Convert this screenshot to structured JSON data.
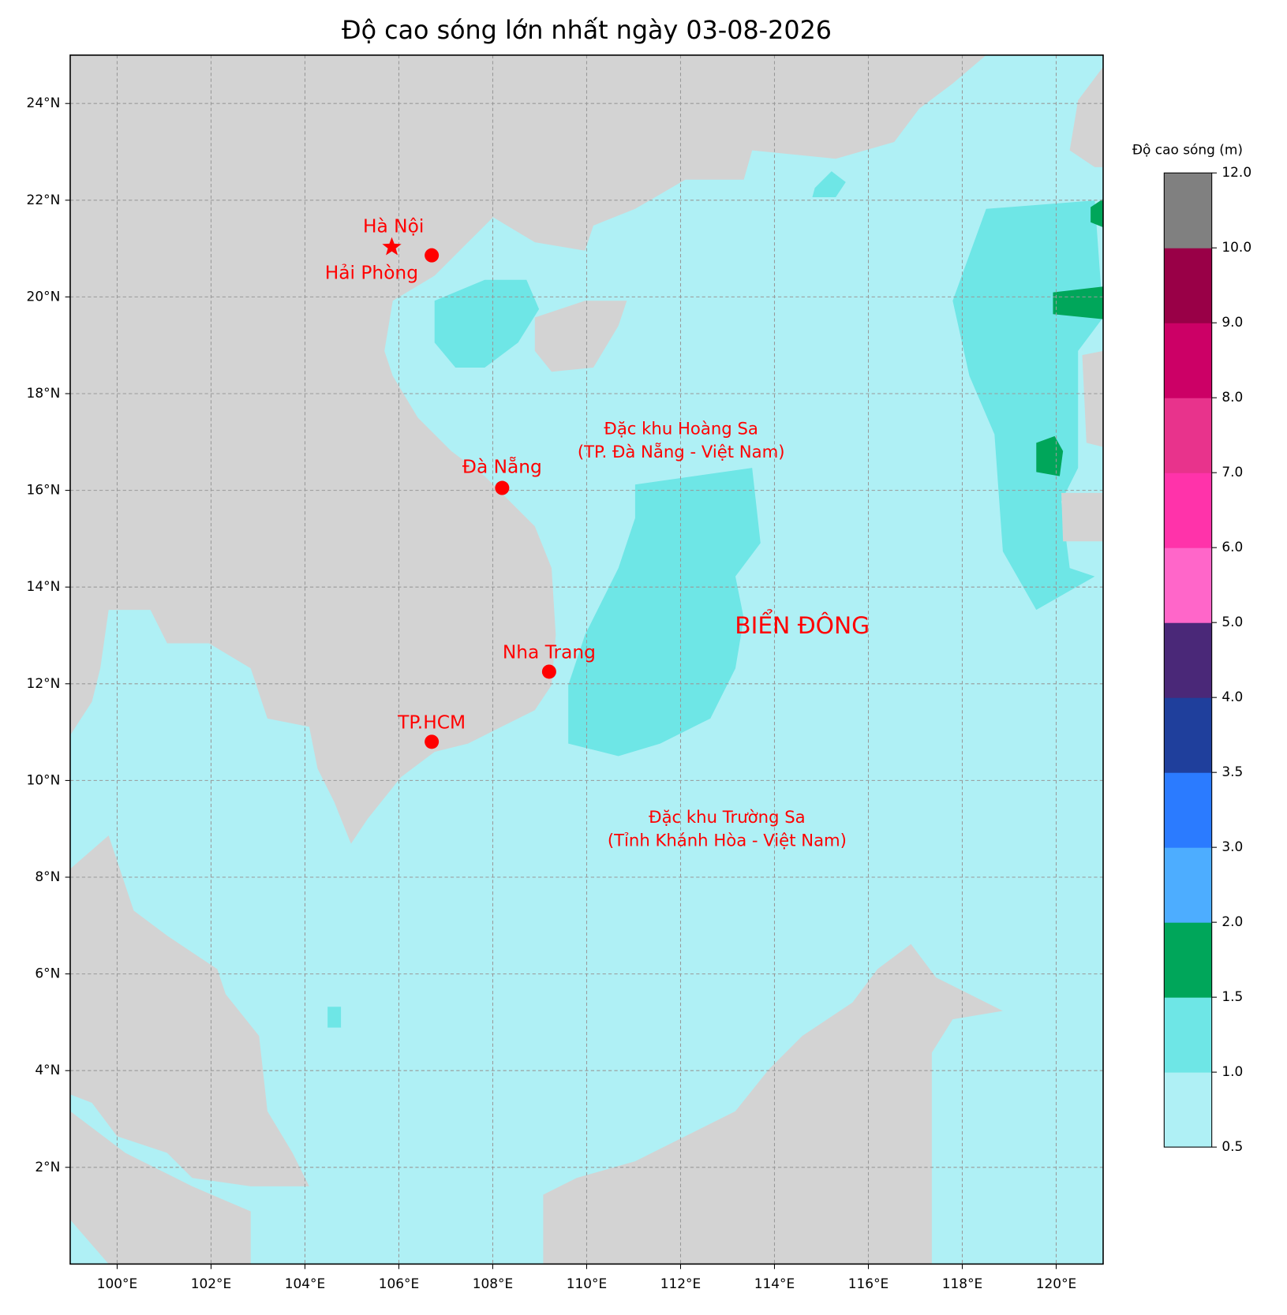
{
  "title": "Độ cao sóng lớn nhất ngày 03-08-2026",
  "map": {
    "lon_range": [
      99,
      121
    ],
    "lat_range": [
      0,
      25
    ],
    "grid": true,
    "lon_ticks": [
      {
        "value": 100,
        "label": "100°E"
      },
      {
        "value": 102,
        "label": "102°E"
      },
      {
        "value": 104,
        "label": "104°E"
      },
      {
        "value": 106,
        "label": "106°E"
      },
      {
        "value": 108,
        "label": "108°E"
      },
      {
        "value": 110,
        "label": "110°E"
      },
      {
        "value": 112,
        "label": "112°E"
      },
      {
        "value": 114,
        "label": "114°E"
      },
      {
        "value": 116,
        "label": "116°E"
      },
      {
        "value": 118,
        "label": "118°E"
      },
      {
        "value": 120,
        "label": "120°E"
      }
    ],
    "lat_ticks": [
      {
        "value": 2,
        "label": "2°N"
      },
      {
        "value": 4,
        "label": "4°N"
      },
      {
        "value": 6,
        "label": "6°N"
      },
      {
        "value": 8,
        "label": "8°N"
      },
      {
        "value": 10,
        "label": "10°N"
      },
      {
        "value": 12,
        "label": "12°N"
      },
      {
        "value": 14,
        "label": "14°N"
      },
      {
        "value": 16,
        "label": "16°N"
      },
      {
        "value": 18,
        "label": "18°N"
      },
      {
        "value": 20,
        "label": "20°N"
      },
      {
        "value": 22,
        "label": "22°N"
      },
      {
        "value": 24,
        "label": "24°N"
      }
    ]
  },
  "colorbar": {
    "label": "Độ cao sóng (m)",
    "bounds": [
      0.5,
      1,
      1.5,
      2,
      3,
      3.5,
      4,
      5,
      6,
      7,
      8,
      9,
      10,
      12
    ],
    "colors": [
      "#aff0f5",
      "#6ee6e6",
      "#00a65a",
      "#4dadff",
      "#2b7bff",
      "#1f3f9c",
      "#4a2878",
      "#ff66c9",
      "#ff33aa",
      "#e8338c",
      "#cc0066",
      "#990047",
      "#808080"
    ],
    "ticks": [
      0.5,
      {
        "value": 1,
        "label": "1.0"
      },
      1.5,
      {
        "value": 2,
        "label": "2.0"
      },
      {
        "value": 3,
        "label": "3.0"
      },
      3.5,
      {
        "value": 4,
        "label": "4.0"
      },
      {
        "value": 5,
        "label": "5.0"
      },
      {
        "value": 6,
        "label": "6.0"
      },
      {
        "value": 7,
        "label": "7.0"
      },
      {
        "value": 8,
        "label": "8.0"
      },
      {
        "value": 9,
        "label": "9.0"
      },
      {
        "value": 10,
        "label": "10.0"
      },
      {
        "value": 12,
        "label": "12.0"
      }
    ]
  },
  "cities": [
    {
      "name": "Hà Nội",
      "lon": 105.85,
      "lat": 21.03,
      "marker": "star"
    },
    {
      "name": "Hải Phòng",
      "lon": 106.7,
      "lat": 20.86,
      "marker": "dot"
    },
    {
      "name": "Đà Nẵng",
      "lon": 108.2,
      "lat": 16.05,
      "marker": "dot"
    },
    {
      "name": "Nha Trang",
      "lon": 109.2,
      "lat": 12.25,
      "marker": "dot"
    },
    {
      "name": "TP.HCM",
      "lon": 106.7,
      "lat": 10.8,
      "marker": "dot"
    }
  ],
  "annotations": [
    {
      "lines": [
        "Đặc khu Hoàng Sa",
        "(TP. Đà Nẵng - Việt Nam)"
      ]
    },
    {
      "lines": [
        "BIỂN ĐÔNG"
      ]
    },
    {
      "lines": [
        "Đặc khu Trường Sa",
        "(Tỉnh Khánh Hòa - Việt Nam)"
      ]
    }
  ]
}
